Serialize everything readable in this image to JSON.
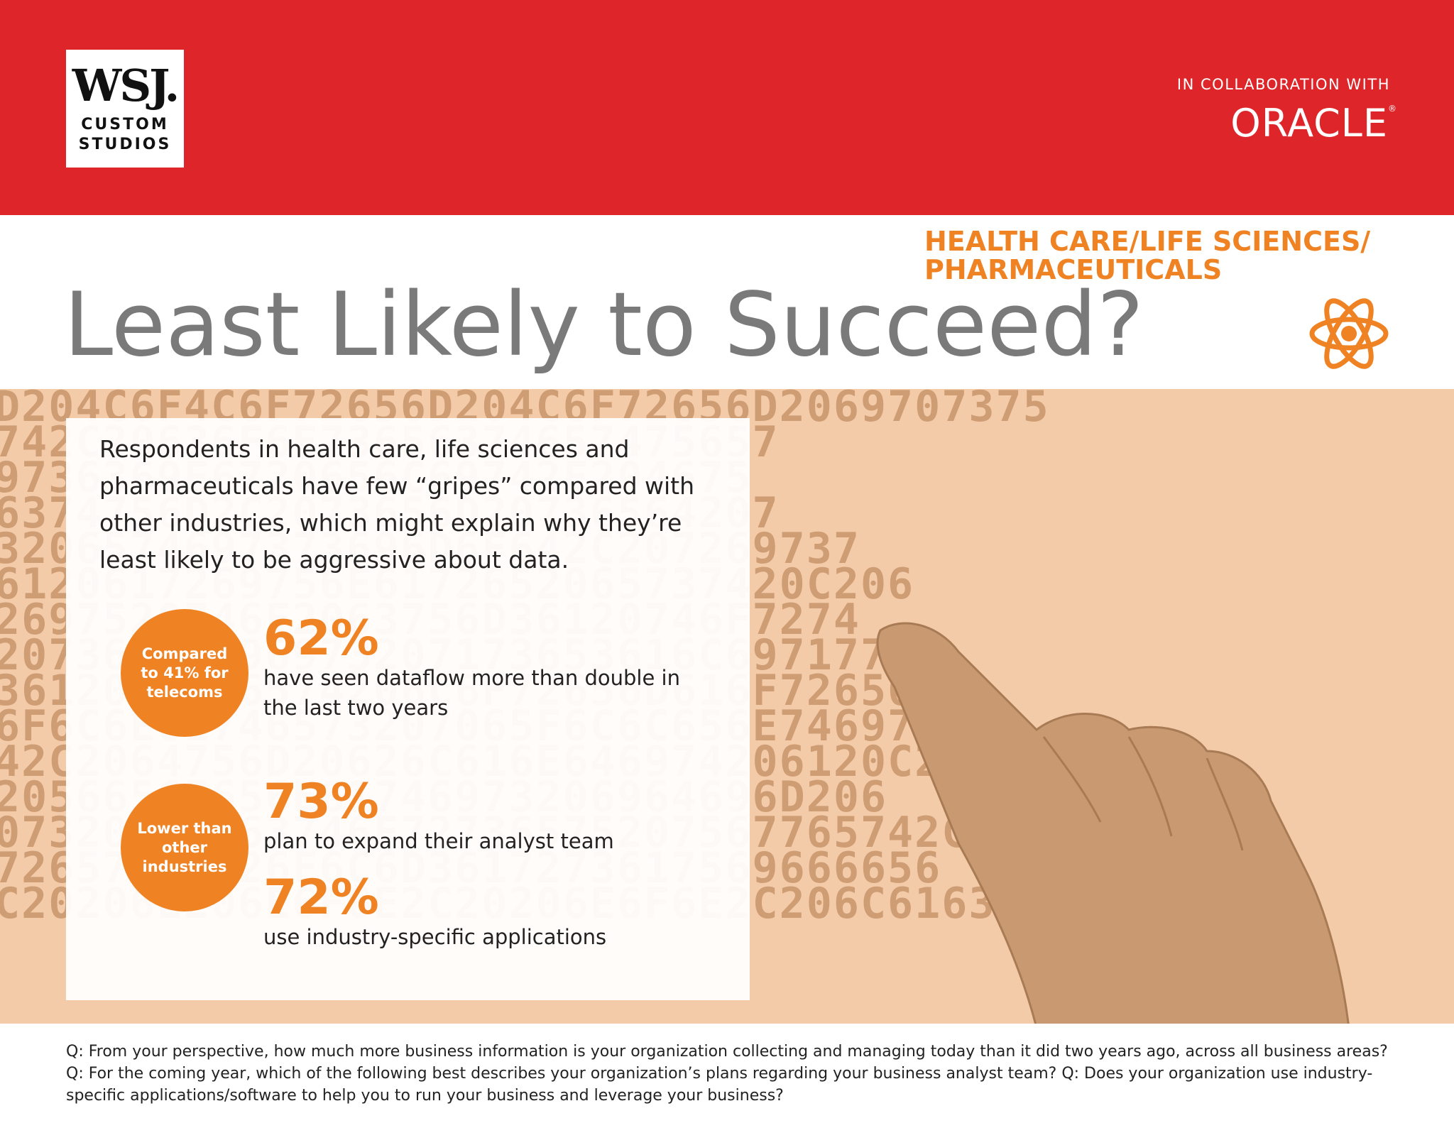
{
  "header": {
    "logo_main": "WSJ.",
    "logo_sub_line1": "CUSTOM",
    "logo_sub_line2": "STUDIOS",
    "collab_label": "IN COLLABORATION WITH",
    "partner": "ORACLE",
    "partner_mark": "®"
  },
  "sector": {
    "line1": "HEALTH CARE/LIFE SCIENCES/",
    "line2": "PHARMACEUTICALS",
    "icon": "atom-icon"
  },
  "title": "Least Likely to Succeed?",
  "background_digits": [
    "D204C6F4C6F72656D204C6F72656D2069707375",
    "742C20636F6E73656374657475657",
    "9736369E6720656C69742E204675",
    "6374756D2C2073656D20736564207",
    "3206574697373696D6F642C207269737",
    "6120617269756E6172652065737420C206",
    "2697520746F2063756D36120746F7274",
    "20736F63696973207173653616C69717756",
    "3612065676574206C6F72656D616F72656",
    "6F6C6E61746573207065F6C6C656E74697",
    "42C2064756D20626C616E646974206120C20",
    "2056656E656E61746973206964696D206",
    "07320617563746F72736575207567765742C",
    "7265746F726F6C6D3617273617569666656",
    "C20206E206E6F6E2C20206E6F6E2C206C616375732E"
  ],
  "intro": "Respondents in health care, life sciences and pharmaceuticals have few “gripes” compared with other industries, which might explain why they’re least likely to be aggressive about data.",
  "stats": [
    {
      "badge": "Compared to 41% for telecoms",
      "value": "62%",
      "text": "have seen dataflow more than double in the last two years"
    },
    {
      "badge": "Lower than other industries",
      "value": "73%",
      "text": "plan to expand their analyst team"
    },
    {
      "value": "72%",
      "text": "use industry-specific applications"
    }
  ],
  "footer": "Q: From your perspective, how much more business information is your organization collecting and managing today than it did two years ago, across all business areas? Q: For the coming year, which of the following best describes your organization’s plans regarding your business analyst team? Q: Does your organization use industry-specific applications/software to help you to run your business and leverage your business?",
  "colors": {
    "header_red": "#de2529",
    "accent_orange": "#ef8223",
    "title_gray": "#7a7a7a",
    "band_peach": "#f4cba9"
  }
}
